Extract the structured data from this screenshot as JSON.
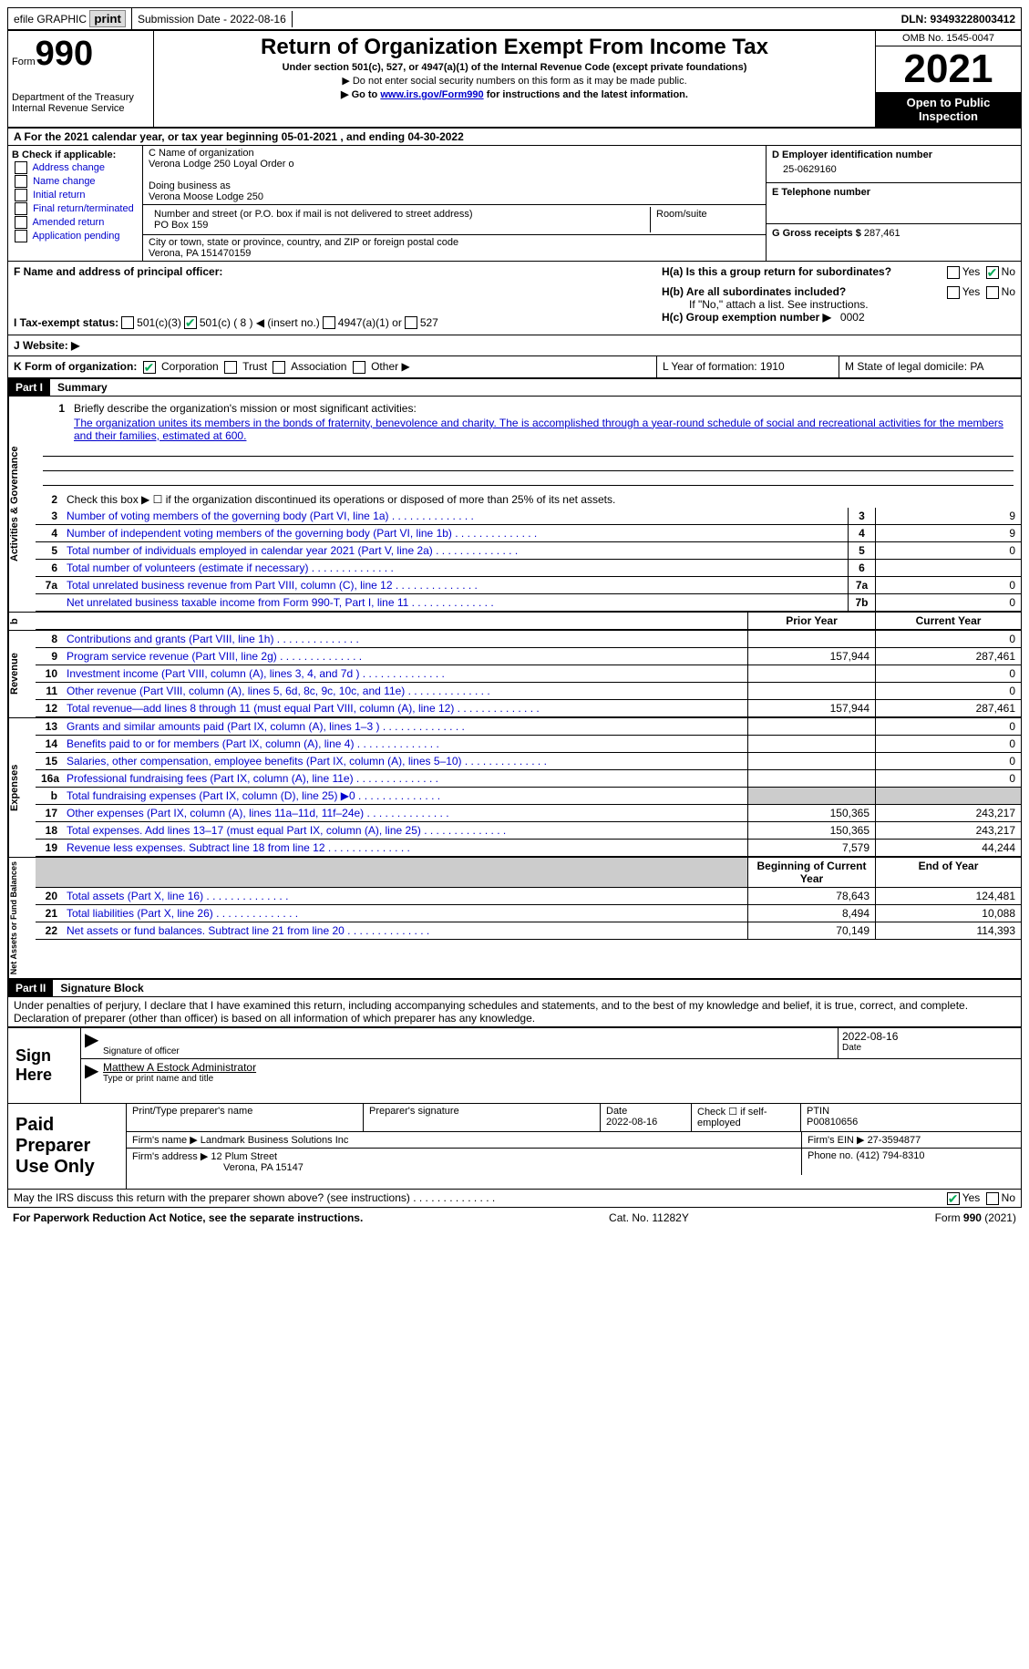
{
  "topbar": {
    "efile": "efile GRAPHIC print",
    "submission": "Submission Date - 2022-08-16",
    "dln": "DLN: 93493228003412"
  },
  "header": {
    "form": "Form",
    "formnum": "990",
    "dept": "Department of the Treasury Internal Revenue Service",
    "title": "Return of Organization Exempt From Income Tax",
    "subtitle": "Under section 501(c), 527, or 4947(a)(1) of the Internal Revenue Code (except private foundations)",
    "line1": "▶ Do not enter social security numbers on this form as it may be made public.",
    "line2": "▶ Go to www.irs.gov/Form990 for instructions and the latest information.",
    "link": "www.irs.gov/Form990",
    "omb": "OMB No. 1545-0047",
    "year": "2021",
    "open": "Open to Public Inspection"
  },
  "rowA": "A For the 2021 calendar year, or tax year beginning 05-01-2021    , and ending 04-30-2022",
  "colB": {
    "label": "B Check if applicable:",
    "items": [
      "Address change",
      "Name change",
      "Initial return",
      "Final return/terminated",
      "Amended return",
      "Application pending"
    ]
  },
  "colC": {
    "name_label": "C Name of organization",
    "name": "Verona Lodge 250 Loyal Order o",
    "dba_label": "Doing business as",
    "dba": "Verona Moose Lodge 250",
    "street_label": "Number and street (or P.O. box if mail is not delivered to street address)",
    "room_label": "Room/suite",
    "street": "PO Box 159",
    "city_label": "City or town, state or province, country, and ZIP or foreign postal code",
    "city": "Verona, PA  151470159"
  },
  "colD": {
    "d_label": "D Employer identification number",
    "ein": "25-0629160",
    "e_label": "E Telephone number",
    "g_label": "G Gross receipts $",
    "g_val": "287,461"
  },
  "rowF": {
    "label": "F  Name and address of principal officer:",
    "ha": "H(a)  Is this a group return for subordinates?",
    "hb": "H(b)  Are all subordinates included?",
    "hb_note": "If \"No,\" attach a list. See instructions.",
    "hc": "H(c)  Group exemption number ▶",
    "hc_val": "0002"
  },
  "rowI": "I  Tax-exempt status:",
  "rowJ": "J  Website: ▶",
  "rowK": "K Form of organization:",
  "rowL": "L Year of formation: 1910",
  "rowM": "M State of legal domicile: PA",
  "part1": {
    "header": "Part I",
    "title": "Summary",
    "q1": "Briefly describe the organization's mission or most significant activities:",
    "mission": "The organization unites its members in the bonds of fraternity, benevolence and charity. The is accomplished through a year-round schedule of social and recreational activities for the members and their families, estimated at 600.",
    "q2": "Check this box ▶ ☐  if the organization discontinued its operations or disposed of more than 25% of its net assets.",
    "rows": [
      {
        "n": "3",
        "t": "Number of voting members of the governing body (Part VI, line 1a)",
        "box": "3",
        "v": "9"
      },
      {
        "n": "4",
        "t": "Number of independent voting members of the governing body (Part VI, line 1b)",
        "box": "4",
        "v": "9"
      },
      {
        "n": "5",
        "t": "Total number of individuals employed in calendar year 2021 (Part V, line 2a)",
        "box": "5",
        "v": "0"
      },
      {
        "n": "6",
        "t": "Total number of volunteers (estimate if necessary)",
        "box": "6",
        "v": ""
      },
      {
        "n": "7a",
        "t": "Total unrelated business revenue from Part VIII, column (C), line 12",
        "box": "7a",
        "v": "0"
      },
      {
        "n": "",
        "t": "Net unrelated business taxable income from Form 990-T, Part I, line 11",
        "box": "7b",
        "v": "0"
      }
    ],
    "prior_header": "Prior Year",
    "current_header": "Current Year",
    "revenue": [
      {
        "n": "8",
        "t": "Contributions and grants (Part VIII, line 1h)",
        "p": "",
        "c": "0"
      },
      {
        "n": "9",
        "t": "Program service revenue (Part VIII, line 2g)",
        "p": "157,944",
        "c": "287,461"
      },
      {
        "n": "10",
        "t": "Investment income (Part VIII, column (A), lines 3, 4, and 7d )",
        "p": "",
        "c": "0"
      },
      {
        "n": "11",
        "t": "Other revenue (Part VIII, column (A), lines 5, 6d, 8c, 9c, 10c, and 11e)",
        "p": "",
        "c": "0"
      },
      {
        "n": "12",
        "t": "Total revenue—add lines 8 through 11 (must equal Part VIII, column (A), line 12)",
        "p": "157,944",
        "c": "287,461"
      }
    ],
    "expenses": [
      {
        "n": "13",
        "t": "Grants and similar amounts paid (Part IX, column (A), lines 1–3 )",
        "p": "",
        "c": "0"
      },
      {
        "n": "14",
        "t": "Benefits paid to or for members (Part IX, column (A), line 4)",
        "p": "",
        "c": "0"
      },
      {
        "n": "15",
        "t": "Salaries, other compensation, employee benefits (Part IX, column (A), lines 5–10)",
        "p": "",
        "c": "0"
      },
      {
        "n": "16a",
        "t": "Professional fundraising fees (Part IX, column (A), line 11e)",
        "p": "",
        "c": "0"
      },
      {
        "n": "b",
        "t": "Total fundraising expenses (Part IX, column (D), line 25) ▶0",
        "p": "shade",
        "c": "shade"
      },
      {
        "n": "17",
        "t": "Other expenses (Part IX, column (A), lines 11a–11d, 11f–24e)",
        "p": "150,365",
        "c": "243,217"
      },
      {
        "n": "18",
        "t": "Total expenses. Add lines 13–17 (must equal Part IX, column (A), line 25)",
        "p": "150,365",
        "c": "243,217"
      },
      {
        "n": "19",
        "t": "Revenue less expenses. Subtract line 18 from line 12",
        "p": "7,579",
        "c": "44,244"
      }
    ],
    "begin_header": "Beginning of Current Year",
    "end_header": "End of Year",
    "netassets": [
      {
        "n": "20",
        "t": "Total assets (Part X, line 16)",
        "p": "78,643",
        "c": "124,481"
      },
      {
        "n": "21",
        "t": "Total liabilities (Part X, line 26)",
        "p": "8,494",
        "c": "10,088"
      },
      {
        "n": "22",
        "t": "Net assets or fund balances. Subtract line 21 from line 20",
        "p": "70,149",
        "c": "114,393"
      }
    ]
  },
  "part2": {
    "header": "Part II",
    "title": "Signature Block",
    "declaration": "Under penalties of perjury, I declare that I have examined this return, including accompanying schedules and statements, and to the best of my knowledge and belief, it is true, correct, and complete. Declaration of preparer (other than officer) is based on all information of which preparer has any knowledge."
  },
  "sign": {
    "label": "Sign Here",
    "sig": "Signature of officer",
    "date": "2022-08-16",
    "date_label": "Date",
    "name": "Matthew A Estock  Administrator",
    "name_label": "Type or print name and title"
  },
  "preparer": {
    "label": "Paid Preparer Use Only",
    "print_label": "Print/Type preparer's name",
    "sig_label": "Preparer's signature",
    "date_label": "Date",
    "date": "2022-08-16",
    "check_label": "Check ☐ if self-employed",
    "ptin_label": "PTIN",
    "ptin": "P00810656",
    "firm_label": "Firm's name    ▶",
    "firm": "Landmark Business Solutions Inc",
    "ein_label": "Firm's EIN ▶",
    "ein": "27-3594877",
    "addr_label": "Firm's address ▶",
    "addr1": "12 Plum Street",
    "addr2": "Verona, PA  15147",
    "phone_label": "Phone no.",
    "phone": "(412) 794-8310"
  },
  "footer": {
    "discuss": "May the IRS discuss this return with the preparer shown above? (see instructions)",
    "paperwork": "For Paperwork Reduction Act Notice, see the separate instructions.",
    "cat": "Cat. No. 11282Y",
    "form": "Form 990 (2021)"
  }
}
